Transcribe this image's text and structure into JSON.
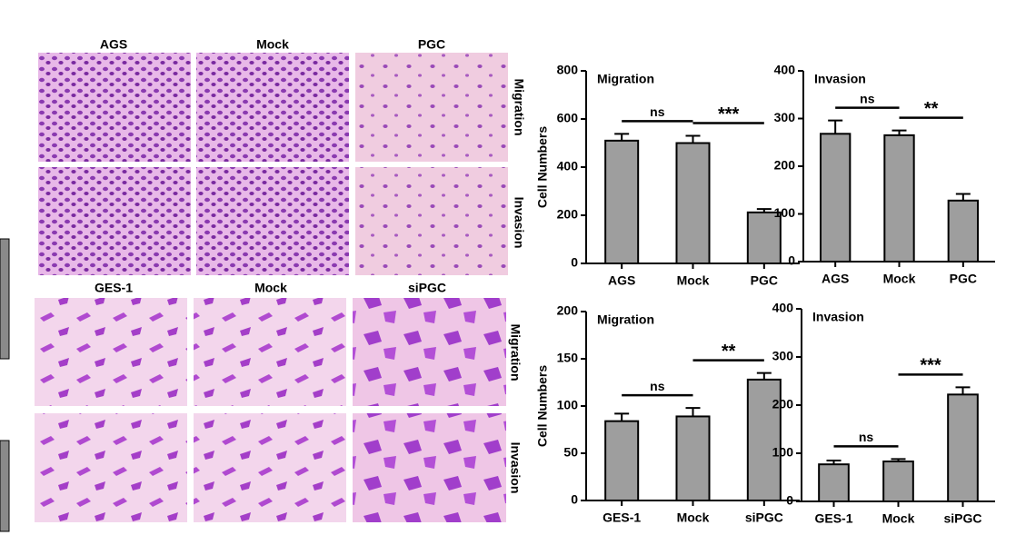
{
  "image_panels": {
    "top_columns": [
      "AGS",
      "Mock",
      "PGC"
    ],
    "top_rows": [
      "Migration",
      "Invasion"
    ],
    "bottom_columns": [
      "GES-1",
      "Mock",
      "siPGC"
    ],
    "bottom_rows": [
      "Migration",
      "Invasion"
    ]
  },
  "chart_data": [
    {
      "type": "bar",
      "title": "Migration",
      "y_label": "Cell Numbers",
      "color": "#9e9e9e",
      "categories": [
        "AGS",
        "Mock",
        "PGC"
      ],
      "values": [
        510,
        500,
        212
      ],
      "errors": [
        28,
        30,
        14
      ],
      "ylim": [
        0,
        800
      ],
      "yticks": [
        0,
        200,
        400,
        600,
        800
      ],
      "comparisons": [
        {
          "label": "ns",
          "between": [
            "AGS",
            "Mock"
          ]
        },
        {
          "label": "***",
          "between": [
            "Mock",
            "PGC"
          ]
        }
      ]
    },
    {
      "type": "bar",
      "title": "Invasion",
      "color": "#9e9e9e",
      "categories": [
        "AGS",
        "Mock",
        "PGC"
      ],
      "values": [
        268,
        265,
        128
      ],
      "errors": [
        28,
        10,
        14
      ],
      "ylim": [
        0,
        400
      ],
      "yticks": [
        0,
        100,
        200,
        300,
        400
      ],
      "comparisons": [
        {
          "label": "ns",
          "between": [
            "AGS",
            "Mock"
          ]
        },
        {
          "label": "**",
          "between": [
            "Mock",
            "PGC"
          ]
        }
      ]
    },
    {
      "type": "bar",
      "title": "Migration",
      "y_label": "Cell Numbers",
      "color": "#9e9e9e",
      "categories": [
        "GES-1",
        "Mock",
        "siPGC"
      ],
      "values": [
        84,
        89,
        128
      ],
      "errors": [
        8,
        9,
        7
      ],
      "ylim": [
        0,
        200
      ],
      "yticks": [
        0,
        50,
        100,
        150,
        200
      ],
      "comparisons": [
        {
          "label": "ns",
          "between": [
            "GES-1",
            "Mock"
          ]
        },
        {
          "label": "**",
          "between": [
            "Mock",
            "siPGC"
          ]
        }
      ]
    },
    {
      "type": "bar",
      "title": "Invasion",
      "color": "#9e9e9e",
      "categories": [
        "GES-1",
        "Mock",
        "siPGC"
      ],
      "values": [
        77,
        83,
        222
      ],
      "errors": [
        8,
        5,
        15
      ],
      "ylim": [
        0,
        400
      ],
      "yticks": [
        0,
        100,
        200,
        300,
        400
      ],
      "comparisons": [
        {
          "label": "ns",
          "between": [
            "GES-1",
            "Mock"
          ]
        },
        {
          "label": "***",
          "between": [
            "Mock",
            "siPGC"
          ]
        }
      ]
    }
  ]
}
